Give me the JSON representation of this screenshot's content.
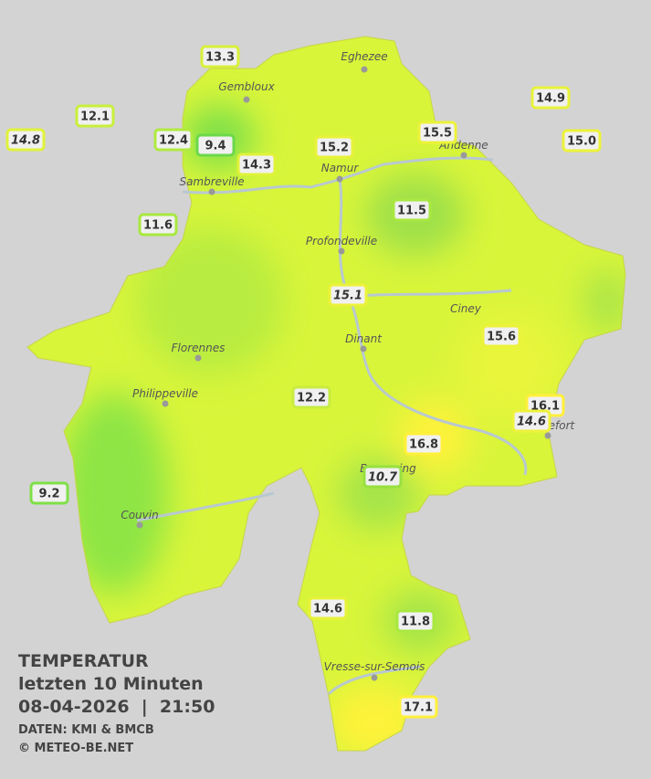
{
  "legend": {
    "title": "TEMPERATUR",
    "period": "letzten 10 Minuten",
    "datetime": "08-04-2026  |  21:50",
    "source": "DATEN: KMI & BMCB",
    "copyright": "© METEO-BE.NET"
  },
  "cities": [
    "Eghezee",
    "Gembloux",
    "Sambreville",
    "Namur",
    "Andenne",
    "Profondeville",
    "Ciney",
    "Dinant",
    "Florennes",
    "Philippeville",
    "Couvin",
    "Rochefort",
    "Beauraing",
    "Vresse-sur-Semois"
  ],
  "stations": [
    "13.3",
    "12.1",
    "14.8",
    "12.4",
    "9.4",
    "14.3",
    "15.2",
    "15.5",
    "14.9",
    "15.0",
    "11.6",
    "11.5",
    "15.1",
    "15.6",
    "12.2",
    "16.1",
    "14.6",
    "16.8",
    "10.7",
    "9.2",
    "14.6",
    "11.8",
    "17.1"
  ]
}
